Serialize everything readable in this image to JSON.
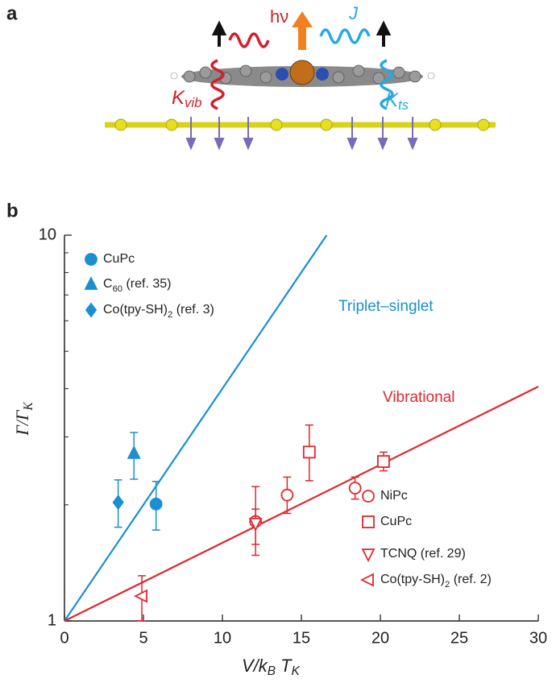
{
  "figure": {
    "panel_a": {
      "label": "a",
      "h_nu": "hν",
      "J": "J",
      "K_vib": [
        "K",
        "vib"
      ],
      "K_ts": [
        "K",
        "ts"
      ]
    }
  },
  "chart_data": {
    "type": "scatter",
    "panel_label": "b",
    "xlabel": [
      "V/k",
      "B",
      " T",
      "K"
    ],
    "ylabel": [
      "Γ/Γ",
      "K"
    ],
    "xlim": [
      0,
      30
    ],
    "ylim": [
      1,
      10
    ],
    "yscale": "log",
    "xticks": [
      0,
      5,
      10,
      15,
      20,
      25,
      30
    ],
    "yticks": [
      1,
      10
    ],
    "minor_yticks": [
      2,
      3,
      4,
      5,
      6,
      7,
      8,
      9
    ],
    "lines": [
      {
        "name": "Triplet–singlet",
        "color": "#1b8fd0",
        "x": [
          0,
          16.6
        ],
        "values": [
          1,
          10
        ]
      },
      {
        "name": "Vibrational",
        "color": "#e1262c",
        "x": [
          0,
          30
        ],
        "values": [
          1,
          4.05
        ]
      }
    ],
    "series": [
      {
        "name": [
          "CuPc"
        ],
        "color": "#1b8fd0",
        "marker": "circle",
        "filled": true,
        "legend": "top-left",
        "x": [
          5.8
        ],
        "values": [
          2.01
        ],
        "lower": [
          1.72
        ],
        "upper": [
          2.3
        ]
      },
      {
        "name": [
          "C",
          "60",
          " (ref. 35)"
        ],
        "color": "#1b8fd0",
        "marker": "triangle-up",
        "filled": true,
        "legend": "top-left",
        "x": [
          4.4
        ],
        "values": [
          2.72
        ],
        "lower": [
          2.33
        ],
        "upper": [
          3.08
        ]
      },
      {
        "name": [
          "Co(tpy-SH)",
          "2",
          " (ref. 3)"
        ],
        "color": "#1b8fd0",
        "marker": "diamond",
        "filled": true,
        "legend": "top-left",
        "x": [
          3.4
        ],
        "values": [
          2.03
        ],
        "lower": [
          1.75
        ],
        "upper": [
          2.32
        ]
      },
      {
        "name": [
          "NiPc"
        ],
        "color": "#e1262c",
        "marker": "circle",
        "filled": false,
        "legend": "bottom-right",
        "x": [
          12.1,
          14.1,
          18.4
        ],
        "values": [
          1.81,
          2.12,
          2.21
        ],
        "lower": [
          1.48,
          1.9,
          2.07
        ],
        "upper": [
          2.23,
          2.36,
          2.36
        ]
      },
      {
        "name": [
          "CuPc"
        ],
        "color": "#e1262c",
        "marker": "square",
        "filled": false,
        "legend": "bottom-right",
        "x": [
          15.5,
          20.2
        ],
        "values": [
          2.74,
          2.59
        ],
        "lower": [
          2.31,
          2.45
        ],
        "upper": [
          3.22,
          2.74
        ]
      },
      {
        "name": [
          "TCNQ (ref. 29)"
        ],
        "color": "#e1262c",
        "marker": "triangle-down",
        "filled": false,
        "legend": "bottom-right",
        "x": [
          12.1
        ],
        "values": [
          1.79
        ],
        "lower": [
          1.58
        ],
        "upper": [
          1.95
        ]
      },
      {
        "name": [
          "Co(tpy-SH)",
          "2",
          " (ref. 2)"
        ],
        "color": "#e1262c",
        "marker": "triangle-left",
        "filled": false,
        "legend": "bottom-right",
        "x": [
          4.9
        ],
        "values": [
          1.16
        ],
        "lower": [
          1.0
        ],
        "upper": [
          1.31
        ]
      }
    ]
  }
}
